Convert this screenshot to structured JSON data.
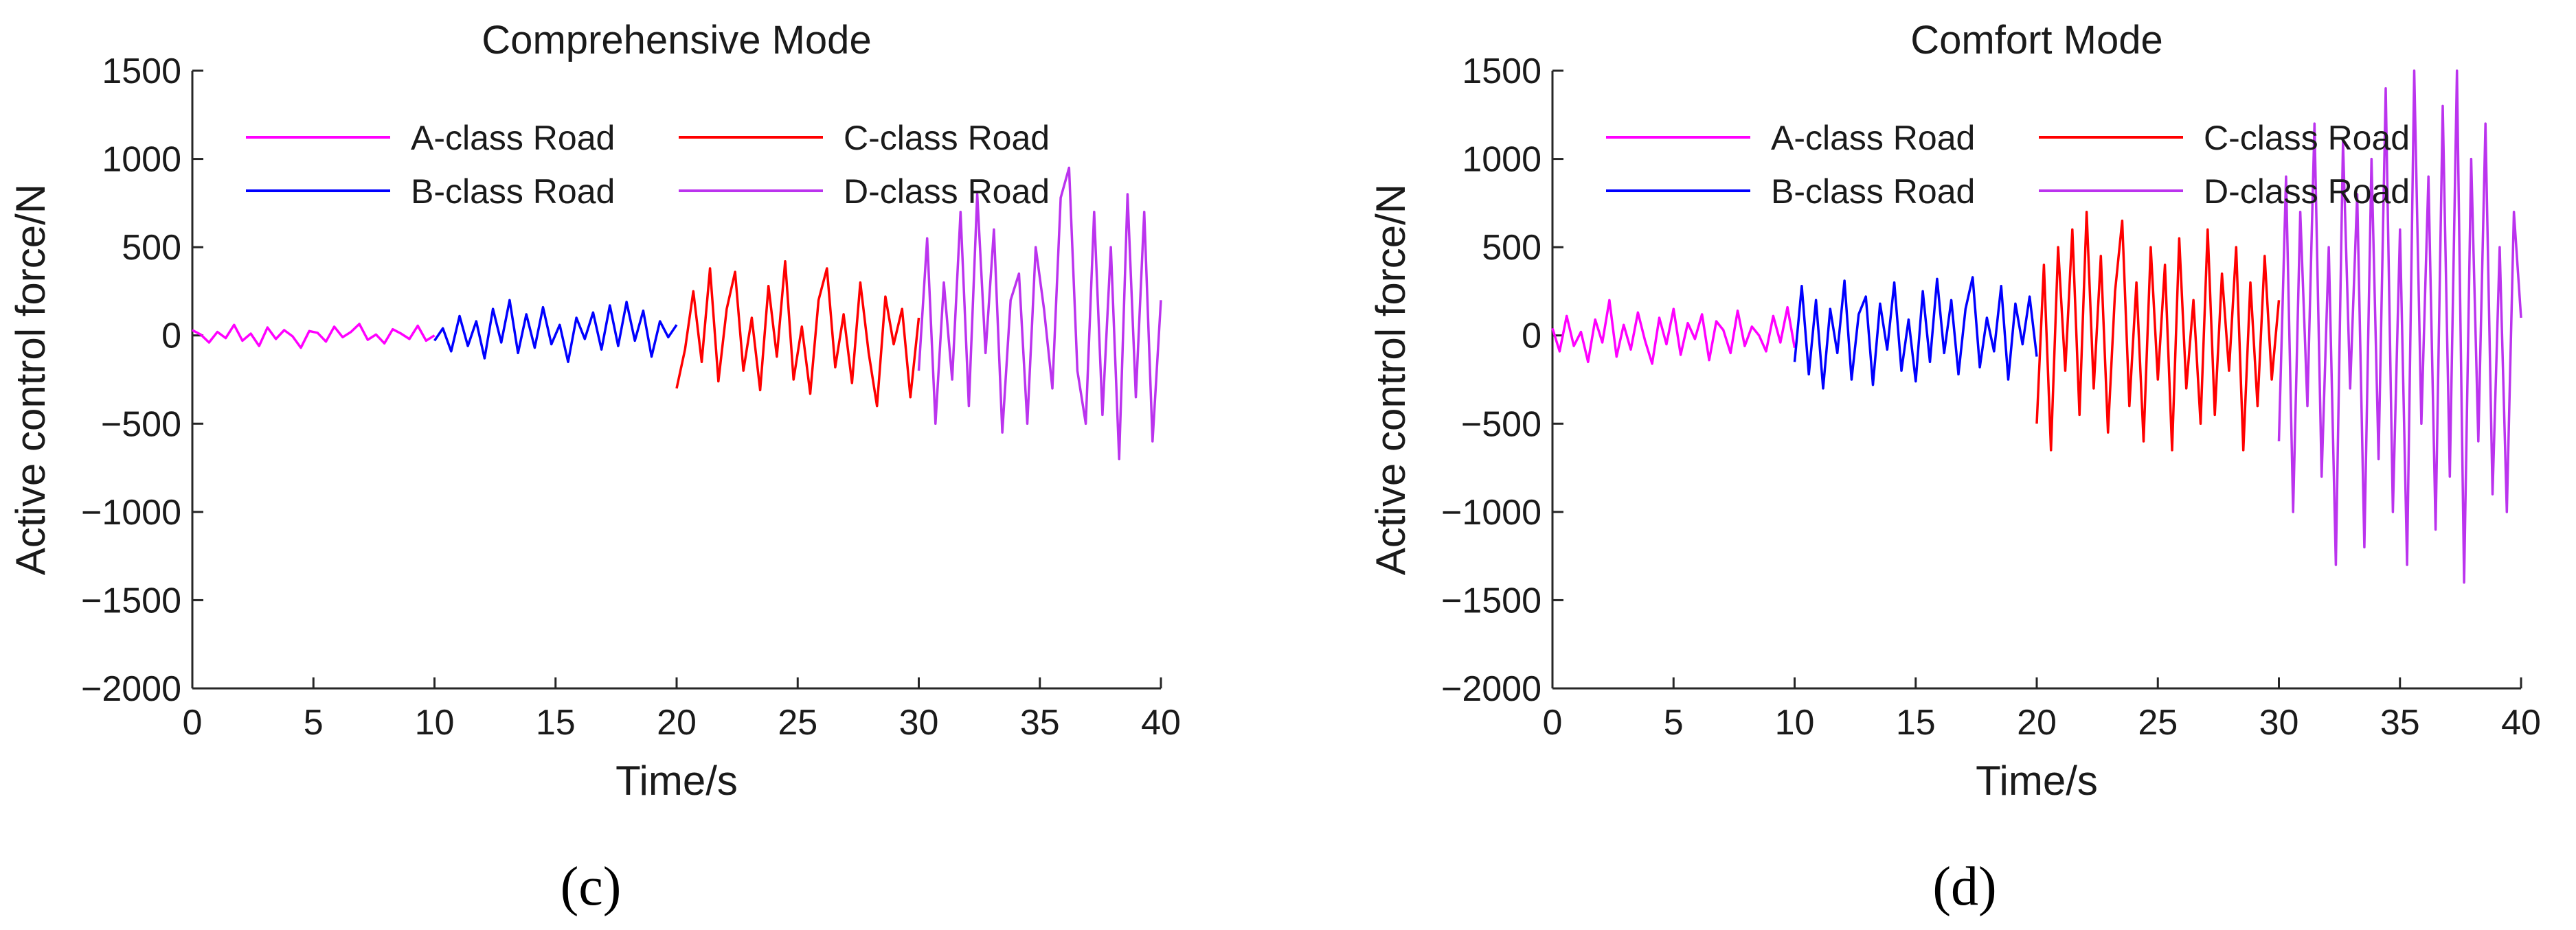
{
  "chart_data": [
    {
      "type": "line",
      "panel_label": "(c)",
      "title": "Comprehensive Mode",
      "xlabel": "Time/s",
      "ylabel": "Active control force/N",
      "xlim": [
        0,
        40
      ],
      "ylim": [
        -2000,
        1500
      ],
      "xticks": [
        "0",
        "5",
        "10",
        "15",
        "20",
        "25",
        "30",
        "35",
        "40"
      ],
      "yticks": [
        "1500",
        "1000",
        "500",
        "0",
        "−500",
        "−1000",
        "−1500",
        "−2000"
      ],
      "grid": false,
      "legend_position": "top, two columns",
      "series": [
        {
          "name": "A-class Road",
          "color": "#ff00ff",
          "t_range": [
            0,
            10
          ],
          "values": [
            30,
            5,
            -40,
            20,
            -15,
            60,
            -30,
            10,
            -60,
            45,
            -20,
            30,
            -5,
            -70,
            25,
            15,
            -35,
            50,
            -10,
            20,
            65,
            -25,
            5,
            -45,
            35,
            10,
            -20,
            55,
            -30,
            0
          ]
        },
        {
          "name": "B-class Road",
          "color": "#0000ff",
          "t_range": [
            10,
            20
          ],
          "values": [
            -30,
            40,
            -90,
            110,
            -60,
            80,
            -130,
            150,
            -40,
            200,
            -100,
            120,
            -70,
            160,
            -50,
            60,
            -150,
            100,
            -20,
            130,
            -80,
            170,
            -60,
            190,
            -30,
            140,
            -120,
            80,
            -10,
            60
          ]
        },
        {
          "name": "C-class Road",
          "color": "#ff0000",
          "t_range": [
            20,
            30
          ],
          "values": [
            -300,
            -80,
            250,
            -150,
            380,
            -260,
            150,
            360,
            -200,
            100,
            -310,
            280,
            -120,
            420,
            -250,
            50,
            -330,
            200,
            380,
            -180,
            120,
            -270,
            300,
            -100,
            -400,
            220,
            -50,
            150,
            -350,
            100
          ]
        },
        {
          "name": "D-class Road",
          "color": "#bb33ee",
          "t_range": [
            30,
            40
          ],
          "values": [
            -200,
            550,
            -500,
            300,
            -250,
            700,
            -400,
            800,
            -100,
            600,
            -550,
            200,
            350,
            -500,
            500,
            150,
            -300,
            780,
            950,
            -200,
            -500,
            700,
            -450,
            500,
            -700,
            800,
            -350,
            700,
            -600,
            200
          ]
        }
      ]
    },
    {
      "type": "line",
      "panel_label": "(d)",
      "title": "Comfort Mode",
      "xlabel": "Time/s",
      "ylabel": "Active control force/N",
      "xlim": [
        0,
        40
      ],
      "ylim": [
        -2000,
        1500
      ],
      "xticks": [
        "0",
        "5",
        "10",
        "15",
        "20",
        "25",
        "30",
        "35",
        "40"
      ],
      "yticks": [
        "1500",
        "1000",
        "500",
        "0",
        "−500",
        "−1000",
        "−1500",
        "−2000"
      ],
      "grid": false,
      "legend_position": "top, two columns",
      "series": [
        {
          "name": "A-class Road",
          "color": "#ff00ff",
          "t_range": [
            0,
            10
          ],
          "values": [
            40,
            -90,
            110,
            -60,
            20,
            -150,
            90,
            -40,
            200,
            -120,
            60,
            -80,
            130,
            -30,
            -160,
            100,
            -50,
            150,
            -110,
            70,
            -20,
            120,
            -140,
            80,
            30,
            -100,
            140,
            -60,
            50,
            0,
            -90,
            110,
            -40,
            160,
            -70
          ]
        },
        {
          "name": "B-class Road",
          "color": "#0000ff",
          "t_range": [
            10,
            20
          ],
          "values": [
            -150,
            280,
            -220,
            200,
            -300,
            150,
            -100,
            310,
            -250,
            120,
            220,
            -280,
            180,
            -80,
            300,
            -200,
            90,
            -260,
            250,
            -150,
            320,
            -100,
            200,
            -220,
            150,
            330,
            -180,
            100,
            -90,
            280,
            -250,
            180,
            -50,
            220,
            -120
          ]
        },
        {
          "name": "C-class Road",
          "color": "#ff0000",
          "t_range": [
            20,
            30
          ],
          "values": [
            -500,
            400,
            -650,
            500,
            -200,
            600,
            -450,
            700,
            -300,
            450,
            -550,
            250,
            650,
            -400,
            300,
            -600,
            500,
            -250,
            400,
            -650,
            550,
            -300,
            200,
            -500,
            600,
            -450,
            350,
            -200,
            500,
            -650,
            300,
            -400,
            450,
            -250,
            200
          ]
        },
        {
          "name": "D-class Road",
          "color": "#bb33ee",
          "t_range": [
            30,
            40
          ],
          "values": [
            -600,
            900,
            -1000,
            700,
            -400,
            1200,
            -800,
            500,
            -1300,
            1100,
            -300,
            800,
            -1200,
            1000,
            -700,
            1400,
            -1000,
            600,
            -1300,
            1500,
            -500,
            900,
            -1100,
            1300,
            -800,
            1500,
            -1400,
            1000,
            -600,
            1200,
            -900,
            500,
            -1000,
            700,
            100
          ]
        }
      ]
    }
  ]
}
